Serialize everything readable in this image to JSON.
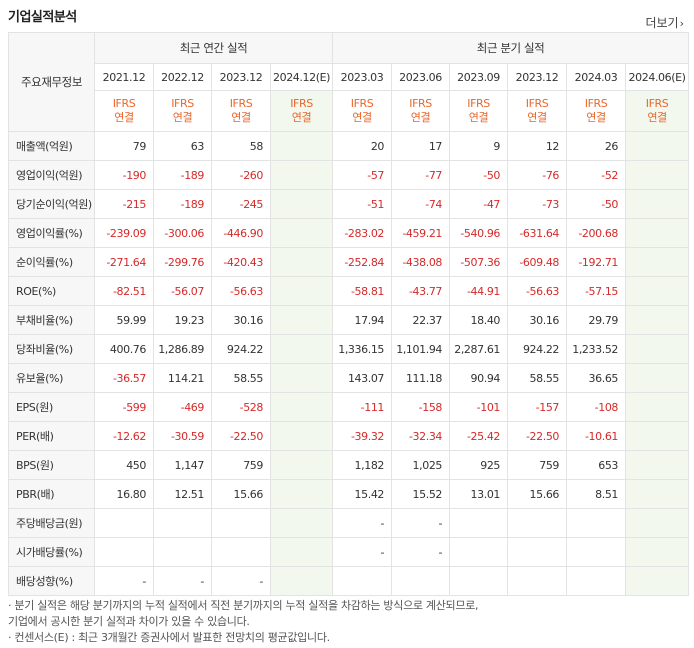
{
  "title": "기업실적분석",
  "more_label": "더보기",
  "header": {
    "row_label": "주요재무정보",
    "annual_group": "최근 연간 실적",
    "quarter_group": "최근 분기 실적",
    "annual_periods": [
      "2021.12",
      "2022.12",
      "2023.12",
      "2024.12(E)"
    ],
    "quarter_periods": [
      "2023.03",
      "2023.06",
      "2023.09",
      "2023.12",
      "2024.03",
      "2024.06(E)"
    ],
    "ifrs_top": "IFRS",
    "ifrs_bottom": "연결"
  },
  "rows": [
    {
      "label": "매출액(억원)",
      "values": [
        "79",
        "63",
        "58",
        "",
        "20",
        "17",
        "9",
        "12",
        "26",
        ""
      ]
    },
    {
      "label": "영업이익(억원)",
      "values": [
        "-190",
        "-189",
        "-260",
        "",
        "-57",
        "-77",
        "-50",
        "-76",
        "-52",
        ""
      ]
    },
    {
      "label": "당기순이익(억원)",
      "values": [
        "-215",
        "-189",
        "-245",
        "",
        "-51",
        "-74",
        "-47",
        "-73",
        "-50",
        ""
      ]
    },
    {
      "label": "영업이익률(%)",
      "values": [
        "-239.09",
        "-300.06",
        "-446.90",
        "",
        "-283.02",
        "-459.21",
        "-540.96",
        "-631.64",
        "-200.68",
        ""
      ]
    },
    {
      "label": "순이익률(%)",
      "values": [
        "-271.64",
        "-299.76",
        "-420.43",
        "",
        "-252.84",
        "-438.08",
        "-507.36",
        "-609.48",
        "-192.71",
        ""
      ]
    },
    {
      "label": "ROE(%)",
      "values": [
        "-82.51",
        "-56.07",
        "-56.63",
        "",
        "-58.81",
        "-43.77",
        "-44.91",
        "-56.63",
        "-57.15",
        ""
      ]
    },
    {
      "label": "부채비율(%)",
      "values": [
        "59.99",
        "19.23",
        "30.16",
        "",
        "17.94",
        "22.37",
        "18.40",
        "30.16",
        "29.79",
        ""
      ]
    },
    {
      "label": "당좌비율(%)",
      "values": [
        "400.76",
        "1,286.89",
        "924.22",
        "",
        "1,336.15",
        "1,101.94",
        "2,287.61",
        "924.22",
        "1,233.52",
        ""
      ]
    },
    {
      "label": "유보율(%)",
      "values": [
        "-36.57",
        "114.21",
        "58.55",
        "",
        "143.07",
        "111.18",
        "90.94",
        "58.55",
        "36.65",
        ""
      ]
    },
    {
      "label": "EPS(원)",
      "values": [
        "-599",
        "-469",
        "-528",
        "",
        "-111",
        "-158",
        "-101",
        "-157",
        "-108",
        ""
      ]
    },
    {
      "label": "PER(배)",
      "values": [
        "-12.62",
        "-30.59",
        "-22.50",
        "",
        "-39.32",
        "-32.34",
        "-25.42",
        "-22.50",
        "-10.61",
        ""
      ]
    },
    {
      "label": "BPS(원)",
      "values": [
        "450",
        "1,147",
        "759",
        "",
        "1,182",
        "1,025",
        "925",
        "759",
        "653",
        ""
      ]
    },
    {
      "label": "PBR(배)",
      "values": [
        "16.80",
        "12.51",
        "15.66",
        "",
        "15.42",
        "15.52",
        "13.01",
        "15.66",
        "8.51",
        ""
      ]
    },
    {
      "label": "주당배당금(원)",
      "values": [
        "",
        "",
        "",
        "",
        "-",
        "-",
        "",
        "",
        "",
        ""
      ]
    },
    {
      "label": "시가배당률(%)",
      "values": [
        "",
        "",
        "",
        "",
        "-",
        "-",
        "",
        "",
        "",
        ""
      ]
    },
    {
      "label": "배당성향(%)",
      "values": [
        "-",
        "-",
        "-",
        "",
        "",
        "",
        "",
        "",
        "",
        ""
      ]
    }
  ],
  "notes": [
    "· 분기 실적은 해당 분기까지의 누적 실적에서 직전 분기까지의 누적 실적을 차감하는 방식으로 계산되므로,",
    "  기업에서 공시한 분기 실적과 차이가 있을 수 있습니다.",
    "· 컨센서스(E) : 최근 3개월간 증권사에서 발표한 전망치의 평균값입니다."
  ]
}
